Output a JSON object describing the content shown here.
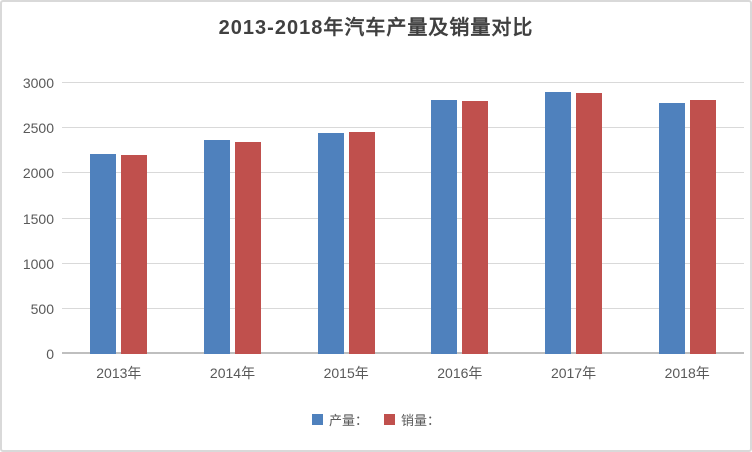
{
  "frame": {
    "background": "#ffffff",
    "border_color": "#d9d9d9"
  },
  "styles": {
    "title_color": "#404040",
    "axis_text_color": "#595959",
    "gridline_color": "#d9d9d9",
    "axis_line_color": "#bfbfbf"
  },
  "chart_data": {
    "type": "bar",
    "title": "2013-2018年汽车产量及销量对比",
    "categories": [
      "2013年",
      "2014年",
      "2015年",
      "2016年",
      "2017年",
      "2018年"
    ],
    "series": [
      {
        "id": "production",
        "name": "产量：",
        "color": "#4f81bd",
        "values": [
          2211.7,
          2372.3,
          2450.3,
          2811.9,
          2901.5,
          2780.9
        ]
      },
      {
        "id": "sales",
        "name": "销量：",
        "color": "#c0504d",
        "values": [
          2198.4,
          2349.2,
          2459.8,
          2802.8,
          2887.9,
          2808.1
        ]
      }
    ],
    "xlabel": "",
    "ylabel": "",
    "ylim": [
      0,
      3000
    ],
    "yticks": [
      0,
      500,
      1000,
      1500,
      2000,
      2500,
      3000
    ],
    "grid": true,
    "legend_position": "bottom"
  }
}
